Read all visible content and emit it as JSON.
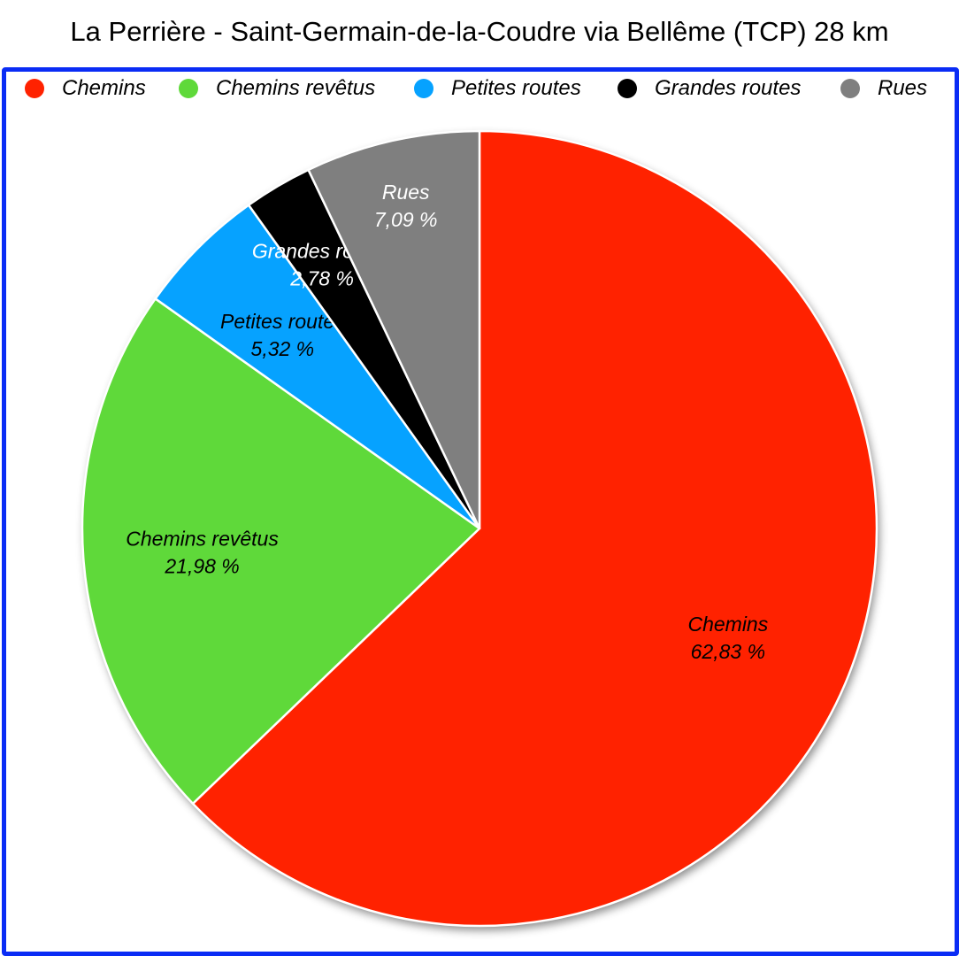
{
  "chart_data": {
    "type": "pie",
    "title": "La Perrière - Saint-Germain-de-la-Coudre via Bellême (TCP) 28 km",
    "legend_position": "top",
    "start_angle": "top, clockwise",
    "slices": [
      {
        "name": "Chemins",
        "value": 62.83,
        "label": "62,83 %",
        "color": "#ff2200",
        "label_color": "#000000"
      },
      {
        "name": "Chemins revêtus",
        "value": 21.98,
        "label": "21,98 %",
        "color": "#5fd93a",
        "label_color": "#000000"
      },
      {
        "name": "Petites routes",
        "value": 5.32,
        "label": "5,32 %",
        "color": "#06a2ff",
        "label_color": "#000000"
      },
      {
        "name": "Grandes routes",
        "value": 2.78,
        "label": "2,78 %",
        "color": "#000000",
        "label_color": "#ffffff"
      },
      {
        "name": "Rues",
        "value": 7.09,
        "label": "7,09 %",
        "color": "#7f7f7f",
        "label_color": "#ffffff"
      }
    ]
  },
  "frame_color": "#0a2cf5"
}
